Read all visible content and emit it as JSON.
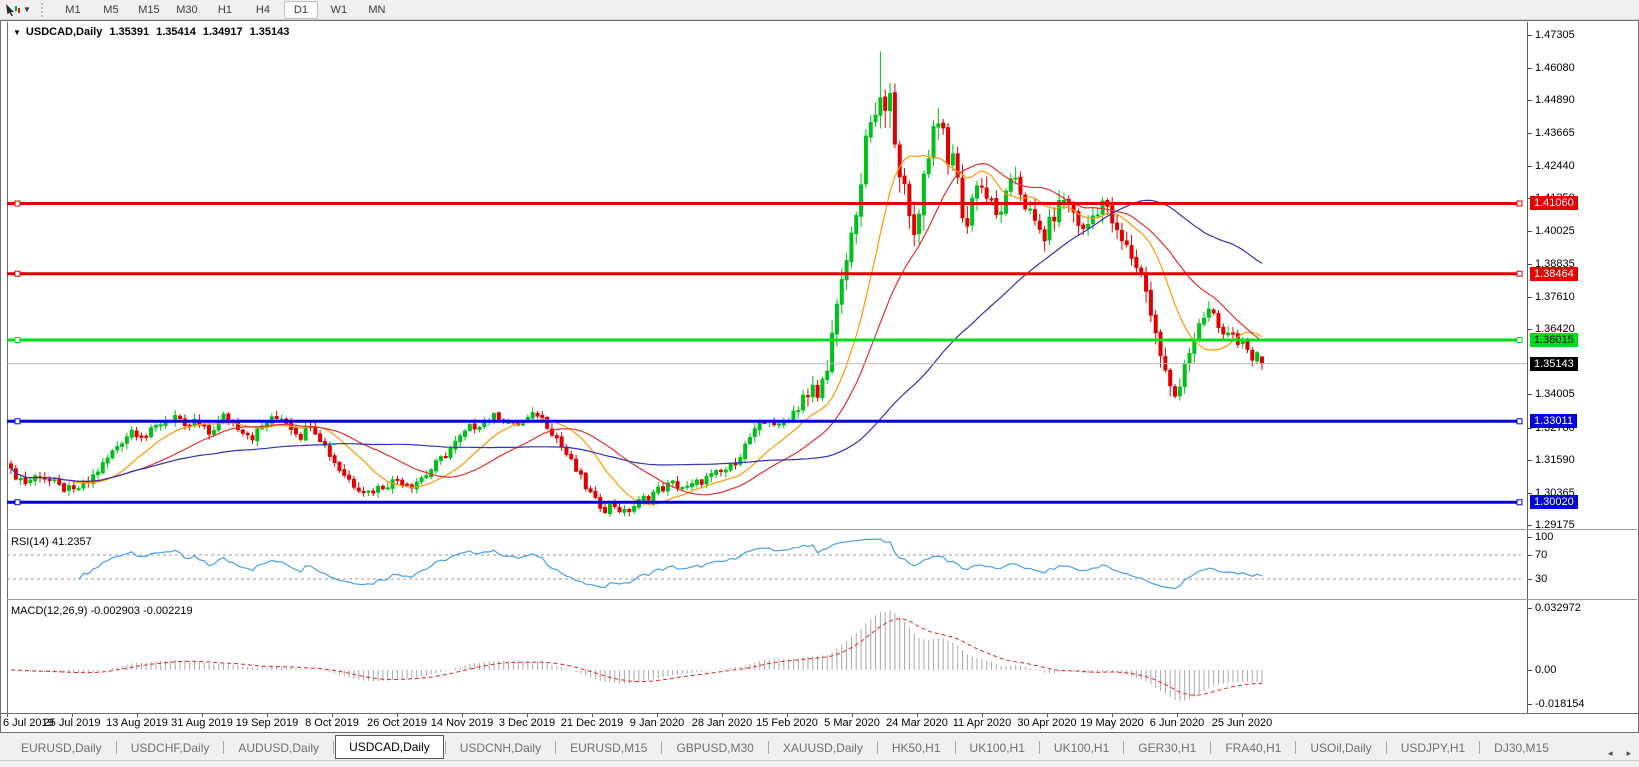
{
  "toolbar": {
    "timeframes": [
      "M1",
      "M5",
      "M15",
      "M30",
      "H1",
      "H4",
      "D1",
      "W1",
      "MN"
    ],
    "active_timeframe": "D1"
  },
  "chart": {
    "title": "USDCAD,Daily",
    "quote": {
      "open": "1.35391",
      "high": "1.35414",
      "low": "1.34917",
      "close": "1.35143"
    },
    "price_axis_ticks": [
      "1.47305",
      "1.46080",
      "1.44890",
      "1.43665",
      "1.42440",
      "1.41250",
      "1.40025",
      "1.38835",
      "1.37610",
      "1.36420",
      "1.34005",
      "1.32780",
      "1.31590",
      "1.30365",
      "1.29175"
    ],
    "hlines": [
      {
        "value": 1.4106,
        "label": "1.41060",
        "color": "#e60000",
        "text_color": "#ffffff"
      },
      {
        "value": 1.38464,
        "label": "1.38464",
        "color": "#e60000",
        "text_color": "#ffffff"
      },
      {
        "value": 1.36015,
        "label": "1.36015",
        "color": "#00dd1c",
        "text_color": "#000000"
      },
      {
        "value": 1.33011,
        "label": "1.33011",
        "color": "#0000dd",
        "text_color": "#ffffff"
      },
      {
        "value": 1.3002,
        "label": "1.30020",
        "color": "#0000dd",
        "text_color": "#ffffff"
      }
    ],
    "current_price": {
      "value": 1.35143,
      "label": "1.35143",
      "line_color": "#bcbcbc",
      "label_bg": "#000000",
      "text_color": "#ffffff"
    },
    "colors": {
      "bull": "#00c11b",
      "bear": "#df0000",
      "background": "#ffffff"
    }
  },
  "indicators": {
    "rsi": {
      "label": "RSI(14) 41.2357",
      "period": 14,
      "value": "41.2357",
      "axis_labels": [
        {
          "v": 100,
          "t": "100"
        },
        {
          "v": 70,
          "t": "70"
        },
        {
          "v": 30,
          "t": "30"
        }
      ],
      "dashed_levels": [
        70,
        30
      ],
      "line_color": "#4aa0e8"
    },
    "macd": {
      "label": "MACD(12,26,9) -0.002903 -0.002219",
      "fast": 12,
      "slow": 26,
      "signal": 9,
      "main_value": "-0.002903",
      "signal_value": "-0.002219",
      "axis_labels": [
        {
          "v": 0.032972,
          "t": "0.032972"
        },
        {
          "v": 0,
          "t": "0.00"
        },
        {
          "v": -0.018154,
          "t": "-0.018154"
        }
      ],
      "hist_color": "#a8a8a8",
      "signal_color": "#e62222"
    }
  },
  "date_axis": [
    "6 Jul 2019",
    "25 Jul 2019",
    "13 Aug 2019",
    "31 Aug 2019",
    "19 Sep 2019",
    "8 Oct 2019",
    "26 Oct 2019",
    "14 Nov 2019",
    "3 Dec 2019",
    "21 Dec 2019",
    "9 Jan 2020",
    "28 Jan 2020",
    "15 Feb 2020",
    "5 Mar 2020",
    "24 Mar 2020",
    "11 Apr 2020",
    "30 Apr 2020",
    "19 May 2020",
    "6 Jun 2020",
    "25 Jun 2020"
  ],
  "tabs": {
    "items": [
      "EURUSD,Daily",
      "USDCHF,Daily",
      "AUDUSD,Daily",
      "USDCAD,Daily",
      "USDCNH,Daily",
      "EURUSD,M15",
      "GBPUSD,M30",
      "XAUUSD,Daily",
      "HK50,H1",
      "UK100,H1",
      "UK100,H1",
      "GER30,H1",
      "FRA40,H1",
      "USOil,Daily",
      "USDJPY,H1",
      "DJ30,M15"
    ],
    "active_index": 3
  },
  "chart_data": {
    "type": "candlestick",
    "symbol": "USDCAD",
    "timeframe": "Daily",
    "visible_price_range": [
      1.29175,
      1.47305
    ],
    "bar_count": 260,
    "last_bar": {
      "open": 1.35391,
      "high": 1.35414,
      "low": 1.34917,
      "close": 1.35143
    },
    "extreme_high": 1.4668,
    "extreme_low": 1.2949,
    "price_anchors": [
      [
        0,
        1.3115
      ],
      [
        3,
        1.3075
      ],
      [
        6,
        1.3105
      ],
      [
        10,
        1.3058
      ],
      [
        13,
        1.3042
      ],
      [
        16,
        1.3078
      ],
      [
        19,
        1.314
      ],
      [
        22,
        1.321
      ],
      [
        25,
        1.3268
      ],
      [
        28,
        1.3245
      ],
      [
        31,
        1.3295
      ],
      [
        34,
        1.332
      ],
      [
        36,
        1.3272
      ],
      [
        38,
        1.33
      ],
      [
        41,
        1.3255
      ],
      [
        44,
        1.3318
      ],
      [
        47,
        1.3282
      ],
      [
        50,
        1.3245
      ],
      [
        53,
        1.33
      ],
      [
        56,
        1.3318
      ],
      [
        58,
        1.3282
      ],
      [
        60,
        1.3248
      ],
      [
        62,
        1.3295
      ],
      [
        64,
        1.324
      ],
      [
        66,
        1.318
      ],
      [
        68,
        1.3125
      ],
      [
        71,
        1.3068
      ],
      [
        74,
        1.304
      ],
      [
        77,
        1.3062
      ],
      [
        80,
        1.3085
      ],
      [
        83,
        1.3068
      ],
      [
        86,
        1.3105
      ],
      [
        89,
        1.316
      ],
      [
        92,
        1.322
      ],
      [
        95,
        1.3275
      ],
      [
        98,
        1.3302
      ],
      [
        101,
        1.3322
      ],
      [
        104,
        1.3285
      ],
      [
        107,
        1.3308
      ],
      [
        109,
        1.333
      ],
      [
        111,
        1.329
      ],
      [
        113,
        1.324
      ],
      [
        115,
        1.318
      ],
      [
        117,
        1.312
      ],
      [
        119,
        1.306
      ],
      [
        121,
        1.3005
      ],
      [
        123,
        1.298
      ],
      [
        125,
        1.2992
      ],
      [
        127,
        1.2962
      ],
      [
        129,
        1.2988
      ],
      [
        131,
        1.3015
      ],
      [
        134,
        1.3048
      ],
      [
        137,
        1.307
      ],
      [
        140,
        1.3052
      ],
      [
        143,
        1.3082
      ],
      [
        146,
        1.3105
      ],
      [
        149,
        1.313
      ],
      [
        151,
        1.318
      ],
      [
        153,
        1.324
      ],
      [
        155,
        1.3282
      ],
      [
        157,
        1.331
      ],
      [
        159,
        1.3278
      ],
      [
        161,
        1.332
      ],
      [
        163,
        1.3355
      ],
      [
        164,
        1.34
      ],
      [
        165,
        1.338
      ],
      [
        166,
        1.342
      ],
      [
        167,
        1.339
      ],
      [
        168,
        1.3445
      ],
      [
        169,
        1.352
      ],
      [
        170,
        1.361
      ],
      [
        171,
        1.3705
      ],
      [
        172,
        1.38
      ],
      [
        173,
        1.3895
      ],
      [
        174,
        1.3985
      ],
      [
        175,
        1.409
      ],
      [
        176,
        1.4185
      ],
      [
        177,
        1.431
      ],
      [
        178,
        1.442
      ],
      [
        179,
        1.4385
      ],
      [
        180,
        1.45
      ],
      [
        181,
        1.443
      ],
      [
        182,
        1.448
      ],
      [
        183,
        1.4375
      ],
      [
        184,
        1.4245
      ],
      [
        185,
        1.414
      ],
      [
        186,
        1.404
      ],
      [
        187,
        1.3995
      ],
      [
        188,
        1.41
      ],
      [
        189,
        1.4205
      ],
      [
        190,
        1.43
      ],
      [
        191,
        1.4385
      ],
      [
        192,
        1.4435
      ],
      [
        193,
        1.4345
      ],
      [
        194,
        1.424
      ],
      [
        195,
        1.4305
      ],
      [
        196,
        1.418
      ],
      [
        197,
        1.408
      ],
      [
        198,
        1.4025
      ],
      [
        199,
        1.412
      ],
      [
        200,
        1.4195
      ],
      [
        202,
        1.4135
      ],
      [
        204,
        1.4055
      ],
      [
        206,
        1.4125
      ],
      [
        208,
        1.4205
      ],
      [
        210,
        1.4105
      ],
      [
        212,
        1.4025
      ],
      [
        214,
        1.3985
      ],
      [
        216,
        1.4065
      ],
      [
        218,
        1.4125
      ],
      [
        220,
        1.4075
      ],
      [
        222,
        1.4
      ],
      [
        224,
        1.406
      ],
      [
        226,
        1.4115
      ],
      [
        228,
        1.404
      ],
      [
        229,
        1.399
      ],
      [
        231,
        1.394
      ],
      [
        233,
        1.388
      ],
      [
        235,
        1.38
      ],
      [
        236,
        1.37
      ],
      [
        237,
        1.362
      ],
      [
        238,
        1.355
      ],
      [
        239,
        1.348
      ],
      [
        240,
        1.342
      ],
      [
        241,
        1.3395
      ],
      [
        242,
        1.345
      ],
      [
        243,
        1.352
      ],
      [
        244,
        1.356
      ],
      [
        245,
        1.359
      ],
      [
        246,
        1.364
      ],
      [
        247,
        1.368
      ],
      [
        248,
        1.3712
      ],
      [
        249,
        1.369
      ],
      [
        250,
        1.3655
      ],
      [
        251,
        1.3618
      ],
      [
        252,
        1.3645
      ],
      [
        253,
        1.3605
      ],
      [
        254,
        1.3568
      ],
      [
        255,
        1.359
      ],
      [
        256,
        1.3572
      ],
      [
        257,
        1.3538
      ],
      [
        258,
        1.356
      ],
      [
        259,
        1.3514
      ]
    ],
    "volatility_anchors": [
      [
        0,
        1
      ],
      [
        160,
        1
      ],
      [
        166,
        1.8
      ],
      [
        172,
        2.6
      ],
      [
        180,
        3.2
      ],
      [
        190,
        2.8
      ],
      [
        200,
        2.3
      ],
      [
        215,
        1.9
      ],
      [
        228,
        1.7
      ],
      [
        236,
        2.2
      ],
      [
        242,
        1.8
      ],
      [
        250,
        1.3
      ],
      [
        259,
        1.0
      ]
    ],
    "bar_overrides": {
      "127": {
        "l": 1.2949
      },
      "180": {
        "h": 1.4668
      },
      "241": {
        "l": 1.3385
      },
      "259": {
        "o": 1.35391,
        "h": 1.35414,
        "l": 1.34917,
        "c": 1.35143
      }
    },
    "moving_averages": [
      {
        "color": "#ff9900",
        "period": 13
      },
      {
        "color": "#e03232",
        "period": 26
      },
      {
        "color": "#3232b4",
        "period": 65
      }
    ]
  }
}
